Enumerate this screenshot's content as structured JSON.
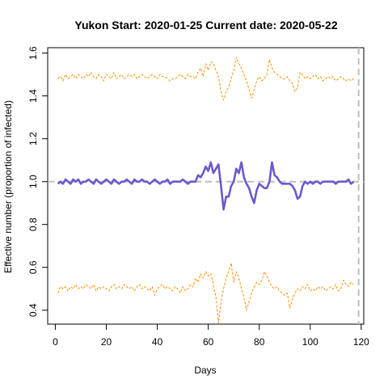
{
  "chart_data": {
    "type": "line",
    "title": "Yukon Start:  2020-01-25   Current date:  2020-05-22",
    "xlabel": "Days",
    "ylabel": "Effective number (proportion of infected)",
    "xlim": [
      -3,
      121
    ],
    "ylim": [
      0.335,
      1.625
    ],
    "xticks": [
      0,
      20,
      40,
      60,
      80,
      100,
      120
    ],
    "yticks": [
      0.4,
      0.6,
      0.8,
      1.0,
      1.2,
      1.4,
      1.6
    ],
    "ytick_labels": [
      "0.4",
      "0.6",
      "0.8",
      "1.0",
      "1.2",
      "1.4",
      "1.6"
    ],
    "reference_lines": {
      "horizontal_y": 1.0,
      "vertical_x": 119,
      "color": "#bebebe",
      "style": "dashed"
    },
    "x_start": 1,
    "series": [
      {
        "role": "estimate",
        "color": "#6a5acd",
        "style": "solid",
        "values": [
          0.99,
          1.0,
          0.99,
          1.01,
          1.0,
          0.99,
          1.01,
          1.0,
          1.01,
          0.99,
          1.0,
          1.0,
          1.01,
          1.0,
          0.99,
          1.01,
          1.0,
          0.99,
          1.0,
          1.01,
          1.0,
          0.99,
          1.01,
          1.0,
          0.99,
          1.0,
          1.0,
          1.01,
          1.0,
          0.99,
          1.01,
          1.0,
          1.0,
          1.01,
          1.0,
          1.0,
          0.99,
          1.0,
          1.01,
          1.0,
          0.99,
          1.0,
          1.0,
          1.01,
          0.99,
          1.0,
          1.0,
          1.0,
          1.0,
          1.01,
          1.0,
          0.99,
          1.0,
          1.0,
          1.0,
          1.03,
          1.02,
          1.04,
          1.07,
          1.05,
          1.09,
          1.04,
          1.06,
          1.08,
          0.98,
          0.87,
          0.93,
          0.93,
          0.98,
          1.0,
          1.06,
          1.04,
          1.09,
          1.02,
          0.99,
          0.97,
          0.93,
          0.9,
          0.96,
          0.99,
          0.98,
          0.97,
          0.97,
          1.0,
          1.09,
          1.03,
          1.02,
          1.0,
          0.99,
          0.99,
          0.99,
          0.99,
          0.98,
          0.96,
          0.92,
          0.93,
          0.98,
          1.0,
          0.99,
          1.0,
          0.99,
          1.0,
          1.0,
          0.99,
          1.0,
          1.0,
          1.0,
          1.0,
          1.0,
          0.99,
          1.0,
          1.0,
          1.0,
          1.0,
          1.01,
          0.99,
          1.0
        ]
      },
      {
        "role": "upper-bound",
        "color": "#ff8c00",
        "style": "dashed",
        "values": [
          1.48,
          1.49,
          1.47,
          1.5,
          1.48,
          1.49,
          1.5,
          1.48,
          1.5,
          1.49,
          1.48,
          1.5,
          1.49,
          1.51,
          1.49,
          1.48,
          1.5,
          1.49,
          1.47,
          1.5,
          1.49,
          1.48,
          1.51,
          1.48,
          1.49,
          1.5,
          1.48,
          1.49,
          1.5,
          1.49,
          1.5,
          1.48,
          1.49,
          1.5,
          1.49,
          1.48,
          1.49,
          1.5,
          1.49,
          1.48,
          1.5,
          1.49,
          1.49,
          1.48,
          1.47,
          1.48,
          1.48,
          1.49,
          1.5,
          1.49,
          1.48,
          1.5,
          1.49,
          1.49,
          1.48,
          1.51,
          1.53,
          1.49,
          1.55,
          1.52,
          1.56,
          1.55,
          1.52,
          1.49,
          1.42,
          1.38,
          1.42,
          1.44,
          1.48,
          1.52,
          1.58,
          1.55,
          1.53,
          1.5,
          1.47,
          1.43,
          1.39,
          1.43,
          1.47,
          1.49,
          1.47,
          1.48,
          1.5,
          1.57,
          1.53,
          1.51,
          1.5,
          1.49,
          1.48,
          1.48,
          1.49,
          1.47,
          1.46,
          1.42,
          1.44,
          1.51,
          1.5,
          1.48,
          1.49,
          1.48,
          1.49,
          1.5,
          1.48,
          1.49,
          1.47,
          1.48,
          1.49,
          1.48,
          1.49,
          1.47,
          1.48,
          1.49,
          1.48,
          1.47,
          1.48,
          1.47,
          1.48
        ]
      },
      {
        "role": "lower-bound",
        "color": "#ff8c00",
        "style": "dashed",
        "values": [
          0.48,
          0.51,
          0.5,
          0.51,
          0.49,
          0.51,
          0.5,
          0.52,
          0.5,
          0.51,
          0.5,
          0.52,
          0.51,
          0.5,
          0.52,
          0.49,
          0.51,
          0.5,
          0.51,
          0.5,
          0.49,
          0.51,
          0.52,
          0.5,
          0.51,
          0.5,
          0.52,
          0.51,
          0.5,
          0.51,
          0.49,
          0.51,
          0.52,
          0.5,
          0.51,
          0.5,
          0.49,
          0.51,
          0.47,
          0.5,
          0.51,
          0.52,
          0.5,
          0.51,
          0.5,
          0.49,
          0.51,
          0.5,
          0.48,
          0.51,
          0.49,
          0.5,
          0.52,
          0.51,
          0.55,
          0.53,
          0.57,
          0.55,
          0.58,
          0.56,
          0.57,
          0.52,
          0.46,
          0.34,
          0.44,
          0.5,
          0.55,
          0.58,
          0.62,
          0.53,
          0.58,
          0.55,
          0.5,
          0.46,
          0.4,
          0.44,
          0.48,
          0.51,
          0.53,
          0.52,
          0.54,
          0.58,
          0.56,
          0.53,
          0.51,
          0.5,
          0.51,
          0.49,
          0.48,
          0.47,
          0.48,
          0.41,
          0.45,
          0.48,
          0.5,
          0.49,
          0.51,
          0.5,
          0.52,
          0.49,
          0.5,
          0.49,
          0.51,
          0.5,
          0.51,
          0.49,
          0.5,
          0.51,
          0.5,
          0.52,
          0.49,
          0.5,
          0.54,
          0.52,
          0.51,
          0.53,
          0.52
        ]
      }
    ]
  }
}
